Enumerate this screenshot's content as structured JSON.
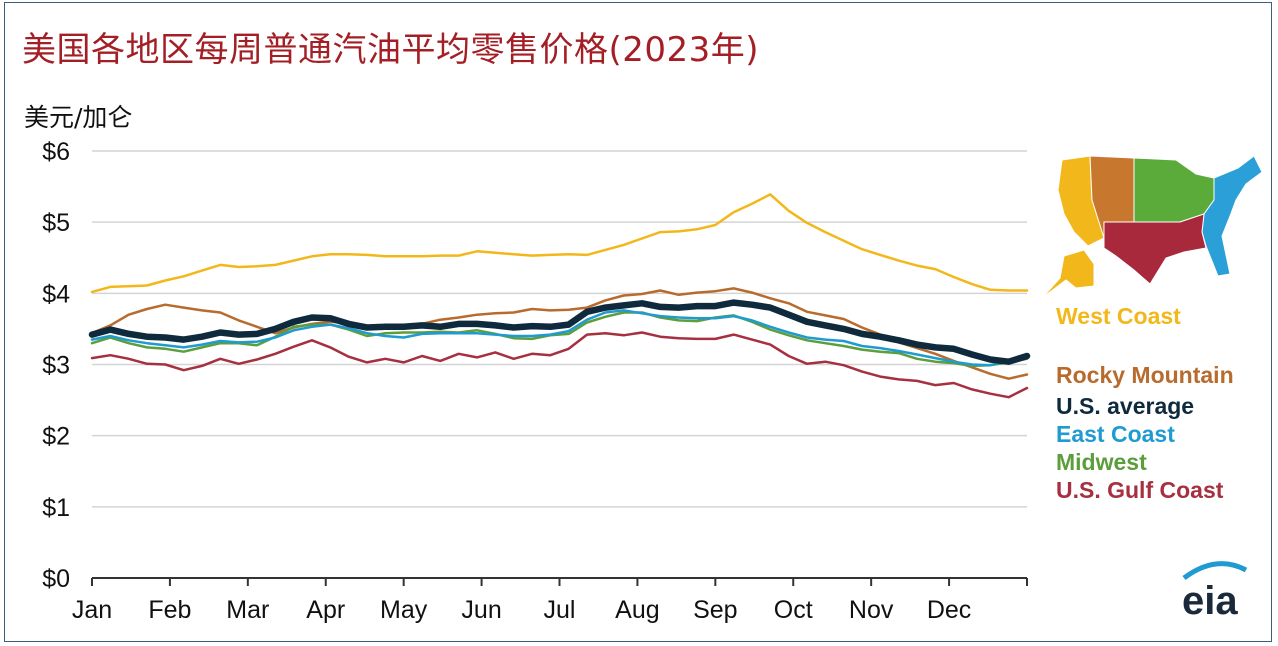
{
  "title": "美国各地区每周普通汽油平均零售价格(2023年)",
  "unit_label": "美元/加仑",
  "watermark": "",
  "logo_text": "eia",
  "chart_data": {
    "type": "line",
    "title": "美国各地区每周普通汽油平均零售价格(2023年)",
    "ylabel": "美元/加仑",
    "xlabel": "",
    "ylim": [
      0,
      6
    ],
    "yticks": [
      0,
      1,
      2,
      3,
      4,
      5,
      6
    ],
    "ytick_labels": [
      "$0",
      "$1",
      "$2",
      "$3",
      "$4",
      "$5",
      "$6"
    ],
    "xtick_labels": [
      "Jan",
      "Feb",
      "Mar",
      "Apr",
      "May",
      "Jun",
      "Jul",
      "Aug",
      "Sep",
      "Oct",
      "Nov",
      "Dec"
    ],
    "x_weeks": [
      1,
      2,
      3,
      4,
      5,
      6,
      7,
      8,
      9,
      10,
      11,
      12,
      13,
      14,
      15,
      16,
      17,
      18,
      19,
      20,
      21,
      22,
      23,
      24,
      25,
      26,
      27,
      28,
      29,
      30,
      31,
      32,
      33,
      34,
      35,
      36,
      37,
      38,
      39,
      40,
      41,
      42,
      43,
      44,
      45,
      46,
      47,
      48,
      49,
      50,
      51,
      52
    ],
    "grid": true,
    "legend_position": "right",
    "series": [
      {
        "name": "West Coast",
        "color": "#f2b81b",
        "width": 2.5,
        "values": [
          4.02,
          4.09,
          4.1,
          4.11,
          4.18,
          4.24,
          4.32,
          4.4,
          4.37,
          4.38,
          4.4,
          4.46,
          4.52,
          4.55,
          4.55,
          4.54,
          4.52,
          4.52,
          4.52,
          4.53,
          4.53,
          4.59,
          4.57,
          4.55,
          4.53,
          4.54,
          4.55,
          4.54,
          4.61,
          4.68,
          4.77,
          4.86,
          4.87,
          4.9,
          4.96,
          5.14,
          5.26,
          5.39,
          5.16,
          4.99,
          4.86,
          4.74,
          4.62,
          4.54,
          4.46,
          4.39,
          4.34,
          4.23,
          4.13,
          4.05,
          4.04,
          4.04
        ]
      },
      {
        "name": "Rocky Mountain",
        "color": "#b86b2c",
        "width": 2.5,
        "values": [
          3.44,
          3.55,
          3.7,
          3.78,
          3.84,
          3.8,
          3.76,
          3.73,
          3.62,
          3.53,
          3.44,
          3.52,
          3.57,
          3.6,
          3.58,
          3.53,
          3.52,
          3.53,
          3.57,
          3.63,
          3.66,
          3.7,
          3.72,
          3.73,
          3.78,
          3.76,
          3.77,
          3.8,
          3.9,
          3.97,
          3.99,
          4.04,
          3.98,
          4.01,
          4.03,
          4.07,
          4.01,
          3.93,
          3.86,
          3.74,
          3.69,
          3.64,
          3.52,
          3.42,
          3.31,
          3.23,
          3.15,
          3.05,
          2.96,
          2.87,
          2.8,
          2.86
        ]
      },
      {
        "name": "U.S. Gulf Coast",
        "color": "#a6303f",
        "width": 2.5,
        "values": [
          3.09,
          3.13,
          3.08,
          3.01,
          3.0,
          2.92,
          2.98,
          3.08,
          3.01,
          3.07,
          3.15,
          3.25,
          3.34,
          3.24,
          3.11,
          3.03,
          3.08,
          3.03,
          3.12,
          3.05,
          3.15,
          3.1,
          3.17,
          3.08,
          3.15,
          3.13,
          3.22,
          3.42,
          3.44,
          3.41,
          3.45,
          3.39,
          3.37,
          3.36,
          3.36,
          3.42,
          3.35,
          3.28,
          3.12,
          3.01,
          3.04,
          2.99,
          2.9,
          2.83,
          2.79,
          2.77,
          2.71,
          2.74,
          2.65,
          2.59,
          2.54,
          2.67
        ]
      },
      {
        "name": "Midwest",
        "color": "#5b9e3b",
        "width": 2.5,
        "values": [
          3.3,
          3.38,
          3.3,
          3.24,
          3.22,
          3.18,
          3.24,
          3.3,
          3.3,
          3.27,
          3.39,
          3.53,
          3.56,
          3.56,
          3.49,
          3.4,
          3.44,
          3.45,
          3.45,
          3.46,
          3.45,
          3.48,
          3.43,
          3.37,
          3.36,
          3.41,
          3.43,
          3.59,
          3.67,
          3.73,
          3.73,
          3.66,
          3.62,
          3.61,
          3.66,
          3.69,
          3.6,
          3.49,
          3.41,
          3.34,
          3.3,
          3.26,
          3.21,
          3.18,
          3.16,
          3.08,
          3.04,
          3.02,
          2.98,
          2.99,
          3.03,
          3.08
        ]
      },
      {
        "name": "East Coast",
        "color": "#1f9bd1",
        "width": 2.5,
        "values": [
          3.35,
          3.4,
          3.34,
          3.3,
          3.27,
          3.24,
          3.28,
          3.33,
          3.31,
          3.32,
          3.38,
          3.48,
          3.53,
          3.56,
          3.51,
          3.44,
          3.4,
          3.38,
          3.43,
          3.44,
          3.44,
          3.44,
          3.42,
          3.4,
          3.4,
          3.42,
          3.47,
          3.63,
          3.73,
          3.76,
          3.72,
          3.68,
          3.66,
          3.65,
          3.65,
          3.68,
          3.62,
          3.53,
          3.45,
          3.38,
          3.35,
          3.33,
          3.26,
          3.23,
          3.19,
          3.14,
          3.09,
          3.04,
          3.0,
          2.99,
          3.05,
          3.1
        ]
      },
      {
        "name": "U.S. average",
        "color": "#0f2a3d",
        "width": 6.5,
        "values": [
          3.42,
          3.49,
          3.43,
          3.39,
          3.38,
          3.35,
          3.39,
          3.45,
          3.42,
          3.43,
          3.5,
          3.6,
          3.66,
          3.65,
          3.57,
          3.52,
          3.53,
          3.53,
          3.55,
          3.53,
          3.57,
          3.57,
          3.55,
          3.52,
          3.54,
          3.53,
          3.56,
          3.74,
          3.8,
          3.83,
          3.86,
          3.81,
          3.8,
          3.82,
          3.82,
          3.87,
          3.84,
          3.8,
          3.7,
          3.6,
          3.55,
          3.5,
          3.43,
          3.39,
          3.34,
          3.28,
          3.24,
          3.22,
          3.14,
          3.07,
          3.04,
          3.12
        ]
      }
    ],
    "legend": [
      {
        "label": "West Coast",
        "color": "#f2b81b"
      },
      {
        "label": "Rocky Mountain",
        "color": "#b86b2c"
      },
      {
        "label": "U.S. average",
        "color": "#0f2a3d"
      },
      {
        "label": "East Coast",
        "color": "#1f9bd1"
      },
      {
        "label": "Midwest",
        "color": "#5b9e3b"
      },
      {
        "label": "U.S. Gulf Coast",
        "color": "#a6303f"
      }
    ]
  },
  "map": {
    "regions": [
      {
        "name": "West Coast",
        "color": "#f2b81b"
      },
      {
        "name": "Rocky Mountain",
        "color": "#c8782e"
      },
      {
        "name": "Midwest",
        "color": "#5bab3a"
      },
      {
        "name": "East Coast",
        "color": "#2a9fd8"
      },
      {
        "name": "U.S. Gulf Coast",
        "color": "#a8293c"
      }
    ]
  }
}
